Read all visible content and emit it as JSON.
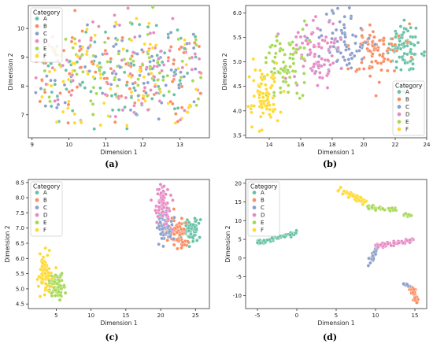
{
  "palette": {
    "A": "#66c2a5",
    "B": "#fc8d62",
    "C": "#8da0cb",
    "D": "#e78ac3",
    "E": "#a6d854",
    "F": "#ffd92f"
  },
  "chart_data": [
    {
      "type": "scatter",
      "caption": "(a)",
      "xlabel": "Dimension 1",
      "ylabel": "Dimension 2",
      "xlim": [
        8.9,
        13.8
      ],
      "ylim": [
        6.2,
        10.8
      ],
      "xticks": [
        9,
        10,
        11,
        12,
        13
      ],
      "yticks": [
        7,
        8,
        9,
        10
      ],
      "legend": {
        "title": "Category",
        "position": "top-left",
        "entries": [
          "A",
          "B",
          "C",
          "D",
          "E",
          "F"
        ]
      },
      "series": [
        {
          "name": "A",
          "clusters": [
            {
              "cx": 11.4,
              "cy": 8.5,
              "sx": 1.0,
              "sy": 0.95,
              "n": 80
            }
          ]
        },
        {
          "name": "B",
          "clusters": [
            {
              "cx": 11.4,
              "cy": 8.5,
              "sx": 1.0,
              "sy": 0.95,
              "n": 80
            }
          ]
        },
        {
          "name": "C",
          "clusters": [
            {
              "cx": 11.4,
              "cy": 8.5,
              "sx": 1.0,
              "sy": 0.95,
              "n": 80
            }
          ]
        },
        {
          "name": "D",
          "clusters": [
            {
              "cx": 11.4,
              "cy": 8.5,
              "sx": 1.0,
              "sy": 0.95,
              "n": 80
            }
          ]
        },
        {
          "name": "E",
          "clusters": [
            {
              "cx": 11.4,
              "cy": 8.5,
              "sx": 1.0,
              "sy": 0.95,
              "n": 80
            }
          ]
        },
        {
          "name": "F",
          "clusters": [
            {
              "cx": 11.4,
              "cy": 8.5,
              "sx": 1.0,
              "sy": 0.95,
              "n": 80
            }
          ]
        }
      ]
    },
    {
      "type": "scatter",
      "caption": "(b)",
      "xlabel": "Dimension 1",
      "ylabel": "Dimension 2",
      "xlim": [
        12.5,
        24.0
      ],
      "ylim": [
        3.45,
        6.15
      ],
      "xticks": [
        14,
        16,
        18,
        20,
        22,
        24
      ],
      "yticks": [
        3.5,
        4.0,
        4.5,
        5.0,
        5.5,
        6.0
      ],
      "legend": {
        "title": "Category",
        "position": "bottom-right",
        "entries": [
          "A",
          "B",
          "C",
          "D",
          "E",
          "F"
        ]
      },
      "series": [
        {
          "name": "A",
          "clusters": [
            {
              "cx": 22.7,
              "cy": 5.25,
              "sx": 0.55,
              "sy": 0.3,
              "n": 80
            }
          ]
        },
        {
          "name": "B",
          "clusters": [
            {
              "cx": 20.8,
              "cy": 5.2,
              "sx": 0.7,
              "sy": 0.3,
              "n": 80
            }
          ]
        },
        {
          "name": "C",
          "clusters": [
            {
              "cx": 18.6,
              "cy": 5.35,
              "sx": 0.8,
              "sy": 0.3,
              "n": 80
            }
          ]
        },
        {
          "name": "D",
          "clusters": [
            {
              "cx": 16.9,
              "cy": 5.2,
              "sx": 0.8,
              "sy": 0.33,
              "n": 80
            }
          ]
        },
        {
          "name": "E",
          "clusters": [
            {
              "cx": 15.1,
              "cy": 4.95,
              "sx": 0.7,
              "sy": 0.38,
              "n": 80
            }
          ]
        },
        {
          "name": "F",
          "clusters": [
            {
              "cx": 13.7,
              "cy": 4.3,
              "sx": 0.5,
              "sy": 0.35,
              "n": 80
            }
          ]
        }
      ]
    },
    {
      "type": "scatter",
      "caption": "(c)",
      "xlabel": "Dimension 1",
      "ylabel": "Dimension 2",
      "xlim": [
        1.0,
        27.0
      ],
      "ylim": [
        4.35,
        8.6
      ],
      "xticks": [
        5,
        10,
        15,
        20,
        25
      ],
      "yticks": [
        4.5,
        5.0,
        5.5,
        6.0,
        6.5,
        7.0,
        7.5,
        8.0,
        8.5
      ],
      "legend": {
        "title": "Category",
        "position": "top-left",
        "entries": [
          "A",
          "B",
          "C",
          "D",
          "E",
          "F"
        ]
      },
      "series": [
        {
          "name": "A",
          "clusters": [
            {
              "cx": 24.4,
              "cy": 6.95,
              "sx": 0.7,
              "sy": 0.2,
              "n": 70
            }
          ]
        },
        {
          "name": "B",
          "clusters": [
            {
              "cx": 22.4,
              "cy": 6.85,
              "sx": 0.8,
              "sy": 0.25,
              "n": 70
            }
          ]
        },
        {
          "name": "C",
          "clusters": [
            {
              "cx": 20.6,
              "cy": 7.05,
              "sx": 0.6,
              "sy": 0.3,
              "n": 70
            }
          ]
        },
        {
          "name": "D",
          "clusters": [
            {
              "cx": 20.3,
              "cy": 7.75,
              "sx": 0.6,
              "sy": 0.35,
              "n": 70
            }
          ]
        },
        {
          "name": "E",
          "clusters": [
            {
              "cx": 4.9,
              "cy": 5.15,
              "sx": 0.6,
              "sy": 0.25,
              "n": 70
            }
          ]
        },
        {
          "name": "F",
          "clusters": [
            {
              "cx": 3.2,
              "cy": 5.55,
              "sx": 0.45,
              "sy": 0.3,
              "n": 70
            }
          ]
        }
      ]
    },
    {
      "type": "scatter",
      "caption": "(d)",
      "xlabel": "Dimension 1",
      "ylabel": "Dimension 2",
      "xlim": [
        -6.5,
        16.5
      ],
      "ylim": [
        -13.5,
        21.0
      ],
      "xticks": [
        -5,
        0,
        5,
        10,
        15
      ],
      "yticks": [
        -10,
        -5,
        0,
        5,
        10,
        15,
        20
      ],
      "legend": {
        "title": "Category",
        "position": "top-left",
        "entries": [
          "A",
          "B",
          "C",
          "D",
          "E",
          "F"
        ]
      },
      "series": [
        {
          "name": "A",
          "segments": [
            {
              "x0": -5,
              "y0": 4.0,
              "x1": 0.2,
              "y1": 6.9,
              "n": 60,
              "w": 0.3
            }
          ]
        },
        {
          "name": "B",
          "segments": [
            {
              "x0": 14.5,
              "y0": -7.5,
              "x1": 15.3,
              "y1": -12.0,
              "n": 40,
              "w": 0.3
            }
          ]
        },
        {
          "name": "C",
          "segments": [
            {
              "x0": 9.2,
              "y0": -1.5,
              "x1": 10.2,
              "y1": 3.0,
              "n": 30,
              "w": 0.3
            },
            {
              "x0": 13.6,
              "y0": -6.5,
              "x1": 14.2,
              "y1": -7.6,
              "n": 10,
              "w": 0.25
            }
          ]
        },
        {
          "name": "D",
          "segments": [
            {
              "x0": 10.2,
              "y0": 3.2,
              "x1": 15.2,
              "y1": 5.0,
              "n": 50,
              "w": 0.35
            }
          ]
        },
        {
          "name": "E",
          "segments": [
            {
              "x0": 9.0,
              "y0": 13.5,
              "x1": 12.8,
              "y1": 12.9,
              "n": 35,
              "w": 0.3
            },
            {
              "x0": 13.8,
              "y0": 11.5,
              "x1": 14.5,
              "y1": 11.3,
              "n": 10,
              "w": 0.25
            }
          ]
        },
        {
          "name": "F",
          "segments": [
            {
              "x0": 5.2,
              "y0": 18.6,
              "x1": 8.6,
              "y1": 15.0,
              "n": 45,
              "w": 0.35
            }
          ]
        }
      ]
    }
  ]
}
